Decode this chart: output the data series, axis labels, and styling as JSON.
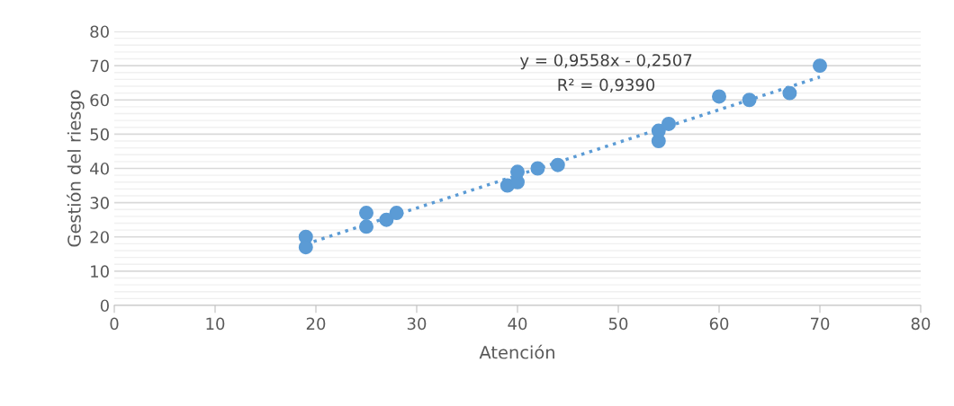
{
  "chart_data": {
    "type": "scatter",
    "xlabel": "Atención",
    "ylabel": "Gestión del riesgo",
    "xlim": [
      0,
      80
    ],
    "xticks": [
      0,
      10,
      20,
      30,
      40,
      50,
      60,
      70,
      80
    ],
    "ylim": [
      0,
      80
    ],
    "yticks": [
      0,
      10,
      20,
      30,
      40,
      50,
      60,
      70,
      80
    ],
    "grid": "y",
    "legend": false,
    "marker": "circle",
    "series": [
      {
        "color": "#5b9bd5",
        "x": [
          19,
          19,
          25,
          25,
          27,
          28,
          39,
          40,
          40,
          42,
          44,
          54,
          54,
          55,
          60,
          63,
          67,
          70
        ],
        "values": [
          20,
          17,
          27,
          23,
          25,
          27,
          35,
          36,
          39,
          40,
          41,
          48,
          51,
          53,
          61,
          60,
          62,
          70
        ]
      },
      {
        "type": "line",
        "color": "#5b9bd5",
        "line_style": "dotted",
        "marker": "none",
        "x": [
          19,
          70
        ],
        "values": [
          17.9,
          66.7
        ]
      }
    ],
    "annotations": [
      "y = 0,9558x - 0,2507",
      "R² = 0,9390"
    ]
  }
}
